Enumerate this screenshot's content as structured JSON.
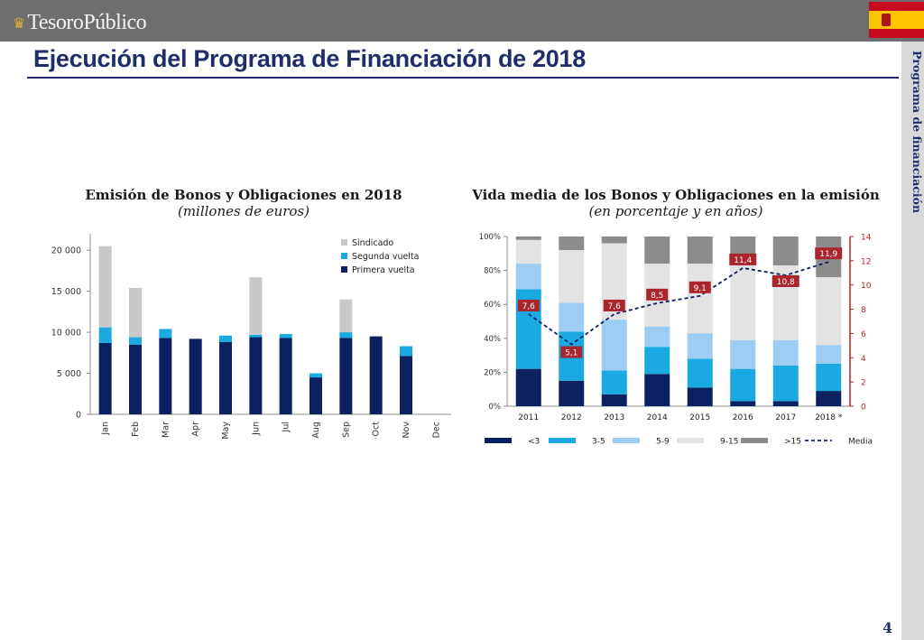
{
  "header": {
    "logo_text": "TesoroPúblico",
    "logo_crown": "♛"
  },
  "page_title": "Ejecución del Programa de Financiación de 2018",
  "side_label": "Programa de financiación",
  "page_number": "4",
  "charts_text": [
    {
      "title": "Emisión de Bonos y Obligaciones en 2018",
      "subtitle": "(millones de euros)"
    },
    {
      "title": "Vida media de los Bonos y Obligaciones en la emisión",
      "subtitle": "(en porcentaje y en años)"
    }
  ],
  "chart_data": [
    {
      "type": "bar",
      "stacked": true,
      "title": "Emisión de Bonos y Obligaciones en 2018",
      "subtitle": "(millones de euros)",
      "categories": [
        "Jan",
        "Feb",
        "Mar",
        "Apr",
        "May",
        "Jun",
        "Jul",
        "Aug",
        "Sep",
        "Oct",
        "Nov",
        "Dec"
      ],
      "series": [
        {
          "name": "Primera vuelta",
          "color": "#0b2160",
          "values": [
            8700,
            8500,
            9300,
            9200,
            8800,
            9400,
            9300,
            4500,
            9300,
            9500,
            7100,
            0
          ]
        },
        {
          "name": "Segunda vuelta",
          "color": "#1aa9e0",
          "values": [
            1900,
            900,
            1100,
            0,
            800,
            300,
            500,
            500,
            700,
            0,
            1200,
            0
          ]
        },
        {
          "name": "Sindicado",
          "color": "#c9c9c9",
          "values": [
            9900,
            6000,
            0,
            0,
            0,
            7000,
            0,
            0,
            4000,
            0,
            0,
            0
          ]
        }
      ],
      "yticks": [
        "0",
        "5 000",
        "10 000",
        "15 000",
        "20 000"
      ],
      "ylim": [
        0,
        22000
      ],
      "legend_position": "top-right",
      "grid": false
    },
    {
      "type": "bar",
      "stacked": true,
      "title": "Vida media de los Bonos y Obligaciones en la emisión",
      "subtitle": "(en porcentaje y en años)",
      "categories": [
        "2011",
        "2012",
        "2013",
        "2014",
        "2015",
        "2016",
        "2017",
        "2018 *"
      ],
      "series": [
        {
          "name": "<3",
          "color": "#0b2160",
          "values": [
            22,
            15,
            7,
            19,
            11,
            3,
            3,
            9
          ]
        },
        {
          "name": "3-5",
          "color": "#1aa9e0",
          "values": [
            47,
            29,
            14,
            16,
            17,
            19,
            21,
            16
          ]
        },
        {
          "name": "5-9",
          "color": "#9dcdf2",
          "values": [
            15,
            17,
            30,
            12,
            15,
            17,
            15,
            11
          ]
        },
        {
          "name": "9-15",
          "color": "#e3e3e3",
          "values": [
            14,
            31,
            45,
            37,
            41,
            45,
            44,
            40
          ]
        },
        {
          "name": ">15",
          "color": "#8c8c8c",
          "values": [
            2,
            8,
            4,
            16,
            16,
            16,
            17,
            24
          ]
        }
      ],
      "line": {
        "name": "Media",
        "color": "#0b2160",
        "values": [
          7.6,
          5.1,
          7.6,
          8.5,
          9.1,
          11.4,
          10.8,
          11.9
        ],
        "labels": [
          "7,6",
          "5,1",
          "7,6",
          "8,5",
          "9,1",
          "11,4",
          "10,8",
          "11,9"
        ],
        "label_color": "#a8262c"
      },
      "ylim_left": [
        0,
        100
      ],
      "yticks_left": [
        "0%",
        "20%",
        "40%",
        "60%",
        "80%",
        "100%"
      ],
      "ylim_right": [
        0,
        14
      ],
      "yticks_right": [
        "0",
        "2",
        "4",
        "6",
        "8",
        "10",
        "12",
        "14"
      ],
      "legend_position": "bottom",
      "grid": false
    }
  ]
}
